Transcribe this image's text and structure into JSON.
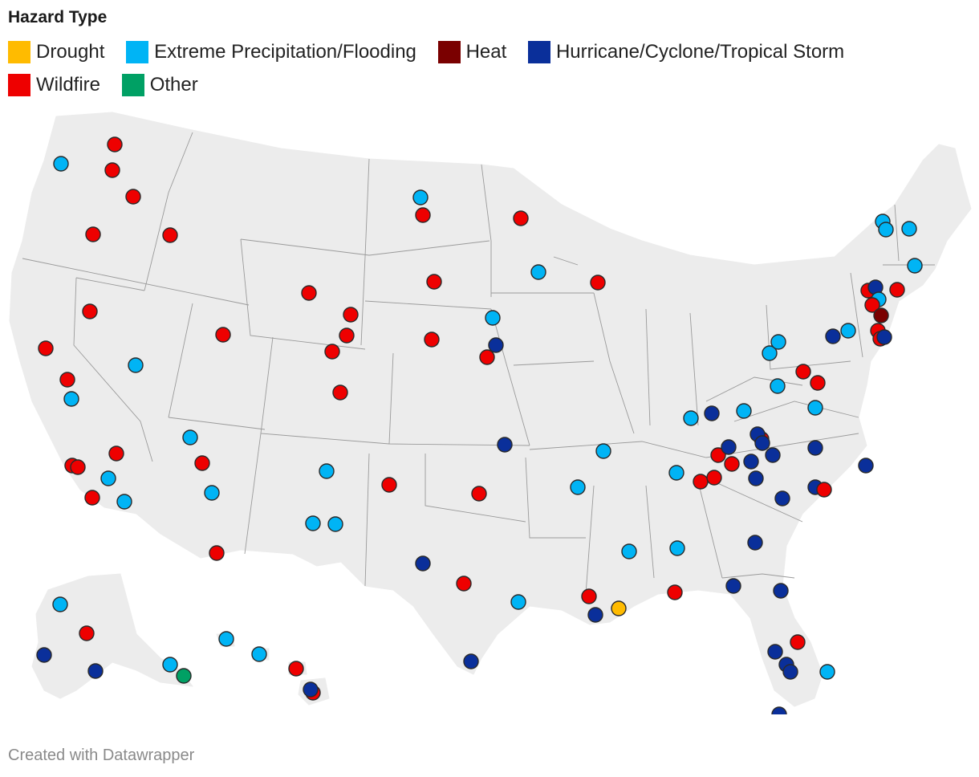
{
  "legend": {
    "title": "Hazard Type",
    "items": [
      {
        "label": "Drought",
        "color": "#ffbb00"
      },
      {
        "label": "Extreme Precipitation/Flooding",
        "color": "#00b4f5"
      },
      {
        "label": "Heat",
        "color": "#7a0000"
      },
      {
        "label": "Hurricane/Cyclone/Tropical Storm",
        "color": "#0a2f9a"
      },
      {
        "label": "Wildfire",
        "color": "#ee0000"
      },
      {
        "label": "Other",
        "color": "#00a064"
      }
    ]
  },
  "credit": "Created with Datawrapper",
  "map": {
    "land_color": "#ececec",
    "border_color": "#9a9a9a"
  }
}
